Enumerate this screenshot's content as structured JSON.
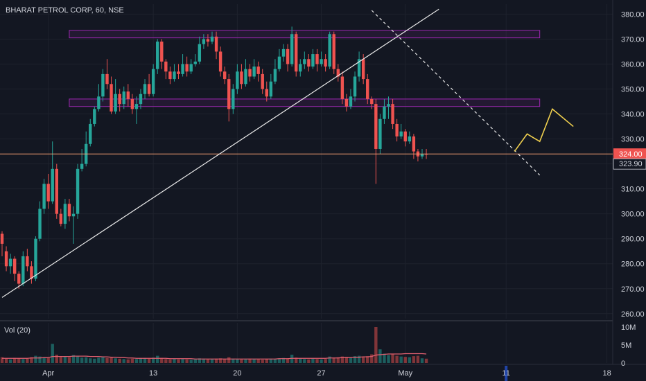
{
  "header": {
    "title": "BHARAT PETROL CORP, 60, NSE"
  },
  "volume_pane": {
    "label": "Vol (20)"
  },
  "colors": {
    "background": "#131722",
    "up": "#26a69a",
    "down": "#ef5350",
    "grid": "#1e222d",
    "trendline": "#e8e8e8",
    "zone": "#9c27b0",
    "projection": "#f0d04e",
    "price_line": "#f7a072",
    "volume_ma": "#e06070"
  },
  "chart_data": {
    "type": "candlestick",
    "title": "BHARAT PETROL CORP, 60, NSE",
    "ylim": [
      258,
      384
    ],
    "volume_ylim": [
      0,
      10
    ],
    "y_ticks": [
      "380.00",
      "370.00",
      "360.00",
      "350.00",
      "340.00",
      "330.00",
      "320.00",
      "310.00",
      "300.00",
      "290.00",
      "280.00",
      "270.00",
      "260.00"
    ],
    "y_tick_values": [
      380,
      370,
      360,
      350,
      340,
      330,
      320,
      310,
      300,
      290,
      280,
      270,
      260
    ],
    "volume_ticks": [
      "10M",
      "5M",
      "0"
    ],
    "volume_tick_values": [
      10,
      5,
      0
    ],
    "x_ticks": [
      "Apr",
      "13",
      "20",
      "27",
      "May",
      "11",
      "18"
    ],
    "x_tick_bars": [
      11,
      36,
      56,
      76,
      96,
      120,
      144
    ],
    "last_price": {
      "value": 324.0,
      "label": "324.00"
    },
    "last_close": {
      "value": 323.9,
      "label": "323.90"
    },
    "candles": [
      [
        292,
        288,
        293,
        283
      ],
      [
        285,
        279,
        287,
        277
      ],
      [
        279,
        282,
        284,
        276
      ],
      [
        282,
        276,
        283,
        273
      ],
      [
        276,
        272,
        277,
        270
      ],
      [
        272,
        283,
        285,
        271
      ],
      [
        283,
        279,
        286,
        277
      ],
      [
        279,
        274,
        281,
        272
      ],
      [
        274,
        290,
        291,
        273
      ],
      [
        290,
        302,
        305,
        289
      ],
      [
        302,
        312,
        314,
        300
      ],
      [
        312,
        305,
        316,
        302
      ],
      [
        305,
        318,
        329,
        304
      ],
      [
        318,
        300,
        320,
        298
      ],
      [
        300,
        296,
        302,
        295
      ],
      [
        296,
        304,
        306,
        294
      ],
      [
        304,
        299,
        306,
        297
      ],
      [
        299,
        300,
        303,
        288
      ],
      [
        300,
        318,
        320,
        298
      ],
      [
        318,
        320,
        326,
        317
      ],
      [
        320,
        328,
        333,
        319
      ],
      [
        328,
        336,
        338,
        327
      ],
      [
        336,
        342,
        343,
        335
      ],
      [
        342,
        347,
        352,
        341
      ],
      [
        347,
        356,
        358,
        345
      ],
      [
        356,
        352,
        362,
        350
      ],
      [
        352,
        341,
        355,
        340
      ],
      [
        341,
        348,
        354,
        340
      ],
      [
        348,
        344,
        350,
        341
      ],
      [
        344,
        349,
        351,
        342
      ],
      [
        349,
        346,
        352,
        343
      ],
      [
        346,
        342,
        348,
        340
      ],
      [
        342,
        344,
        347,
        336
      ],
      [
        344,
        348,
        350,
        342
      ],
      [
        348,
        352,
        354,
        346
      ],
      [
        352,
        348,
        356,
        347
      ],
      [
        348,
        358,
        360,
        347
      ],
      [
        358,
        369,
        370,
        356
      ],
      [
        369,
        361,
        370,
        358
      ],
      [
        361,
        357,
        362,
        354
      ],
      [
        357,
        354,
        359,
        352
      ],
      [
        354,
        357,
        360,
        353
      ],
      [
        357,
        356,
        360,
        354
      ],
      [
        356,
        360,
        364,
        355
      ],
      [
        360,
        357,
        363,
        355
      ],
      [
        357,
        360,
        362,
        356
      ],
      [
        360,
        361,
        364,
        359
      ],
      [
        361,
        368,
        371,
        360
      ],
      [
        368,
        370,
        372,
        366
      ],
      [
        370,
        369,
        372,
        367
      ],
      [
        369,
        371,
        373,
        368
      ],
      [
        371,
        365,
        373,
        362
      ],
      [
        365,
        357,
        367,
        355
      ],
      [
        357,
        354,
        359,
        352
      ],
      [
        354,
        342,
        356,
        337
      ],
      [
        342,
        350,
        352,
        340
      ],
      [
        350,
        357,
        360,
        348
      ],
      [
        357,
        352,
        360,
        350
      ],
      [
        352,
        358,
        362,
        351
      ],
      [
        358,
        355,
        360,
        353
      ],
      [
        355,
        359,
        362,
        354
      ],
      [
        359,
        356,
        361,
        353
      ],
      [
        356,
        350,
        358,
        348
      ],
      [
        350,
        347,
        353,
        345
      ],
      [
        347,
        353,
        356,
        346
      ],
      [
        353,
        358,
        362,
        352
      ],
      [
        358,
        363,
        366,
        357
      ],
      [
        363,
        366,
        368,
        361
      ],
      [
        366,
        360,
        368,
        357
      ],
      [
        360,
        372,
        375,
        359
      ],
      [
        372,
        357,
        373,
        355
      ],
      [
        357,
        360,
        362,
        355
      ],
      [
        360,
        362,
        365,
        358
      ],
      [
        362,
        359,
        364,
        357
      ],
      [
        359,
        364,
        366,
        358
      ],
      [
        364,
        360,
        366,
        357
      ],
      [
        360,
        362,
        365,
        359
      ],
      [
        362,
        359,
        364,
        357
      ],
      [
        359,
        372,
        373,
        358
      ],
      [
        372,
        358,
        373,
        356
      ],
      [
        358,
        355,
        360,
        353
      ],
      [
        355,
        346,
        357,
        344
      ],
      [
        346,
        343,
        348,
        341
      ],
      [
        343,
        347,
        350,
        342
      ],
      [
        347,
        355,
        357,
        345
      ],
      [
        355,
        362,
        365,
        353
      ],
      [
        362,
        354,
        364,
        352
      ],
      [
        354,
        346,
        356,
        344
      ],
      [
        346,
        344,
        347,
        342
      ],
      [
        344,
        326,
        346,
        312
      ],
      [
        326,
        338,
        340,
        324
      ],
      [
        338,
        343,
        346,
        336
      ],
      [
        343,
        344,
        347,
        338
      ],
      [
        344,
        336,
        346,
        334
      ],
      [
        336,
        331,
        338,
        329
      ],
      [
        331,
        333,
        336,
        330
      ],
      [
        333,
        329,
        334,
        327
      ],
      [
        329,
        331,
        333,
        328
      ],
      [
        331,
        325,
        332,
        322
      ],
      [
        325,
        323,
        326,
        321
      ],
      [
        323,
        324,
        326,
        322
      ],
      [
        324,
        323.9,
        326,
        322
      ]
    ],
    "volumes": [
      1.6,
      1.2,
      1.0,
      1.4,
      1.3,
      1.1,
      1.2,
      1.6,
      2.0,
      1.8,
      1.5,
      1.4,
      5.3,
      2.3,
      1.7,
      1.8,
      1.6,
      2.2,
      1.9,
      1.5,
      1.6,
      1.3,
      1.2,
      1.5,
      1.8,
      1.4,
      1.5,
      1.3,
      1.2,
      1.1,
      1.0,
      1.2,
      1.1,
      1.3,
      1.4,
      1.2,
      1.5,
      2.0,
      1.4,
      1.1,
      1.0,
      1.2,
      1.0,
      1.1,
      1.0,
      0.9,
      1.0,
      1.3,
      1.2,
      1.0,
      1.1,
      1.2,
      1.3,
      1.1,
      1.6,
      1.2,
      1.1,
      1.0,
      1.0,
      1.2,
      1.1,
      1.0,
      0.9,
      1.1,
      1.2,
      1.1,
      1.3,
      1.4,
      1.2,
      2.3,
      1.5,
      1.2,
      1.1,
      1.0,
      1.2,
      1.1,
      1.0,
      1.1,
      1.8,
      1.5,
      1.6,
      1.8,
      1.7,
      1.4,
      1.9,
      2.0,
      1.8,
      1.9,
      2.4,
      10.0,
      3.8,
      2.6,
      2.2,
      2.4,
      2.0,
      1.8,
      1.7,
      1.6,
      1.9,
      2.0,
      1.3,
      1.2
    ],
    "volume_ma": [
      1.3,
      1.3,
      1.3,
      1.3,
      1.3,
      1.3,
      1.3,
      1.4,
      1.4,
      1.4,
      1.5,
      1.5,
      1.8,
      1.8,
      1.8,
      1.8,
      1.8,
      1.9,
      1.9,
      1.9,
      1.9,
      1.8,
      1.8,
      1.8,
      1.7,
      1.7,
      1.6,
      1.6,
      1.5,
      1.5,
      1.4,
      1.4,
      1.3,
      1.3,
      1.3,
      1.3,
      1.3,
      1.3,
      1.3,
      1.3,
      1.2,
      1.2,
      1.2,
      1.2,
      1.2,
      1.2,
      1.1,
      1.1,
      1.1,
      1.1,
      1.1,
      1.1,
      1.1,
      1.1,
      1.1,
      1.1,
      1.1,
      1.1,
      1.1,
      1.1,
      1.1,
      1.1,
      1.1,
      1.1,
      1.1,
      1.1,
      1.2,
      1.2,
      1.2,
      1.3,
      1.3,
      1.3,
      1.3,
      1.3,
      1.3,
      1.3,
      1.3,
      1.3,
      1.4,
      1.4,
      1.4,
      1.5,
      1.5,
      1.5,
      1.6,
      1.6,
      1.7,
      1.7,
      1.8,
      2.2,
      2.3,
      2.4,
      2.5,
      2.5,
      2.5,
      2.5,
      2.6,
      2.6,
      2.6,
      2.6,
      2.6,
      2.5
    ],
    "annotations": {
      "zones": [
        {
          "bar_start": 16,
          "bar_end": 128,
          "top": 373.5,
          "bottom": 370.5
        },
        {
          "bar_start": 16,
          "bar_end": 128,
          "top": 346.0,
          "bottom": 343.0
        }
      ],
      "rising_trendline": {
        "from_bar": 0,
        "from_price": 266.5,
        "to_bar": 104,
        "to_price": 382.0
      },
      "dashed_trendline": {
        "from_bar": 88,
        "from_price": 381.5,
        "to_bar": 128,
        "to_price": 315.5
      },
      "horizontal_line": {
        "price": 324.0
      },
      "projection_path": [
        {
          "bar": 122,
          "price": 325
        },
        {
          "bar": 125,
          "price": 332
        },
        {
          "bar": 128,
          "price": 329
        },
        {
          "bar": 131,
          "price": 342
        },
        {
          "bar": 136,
          "price": 335
        }
      ]
    }
  }
}
